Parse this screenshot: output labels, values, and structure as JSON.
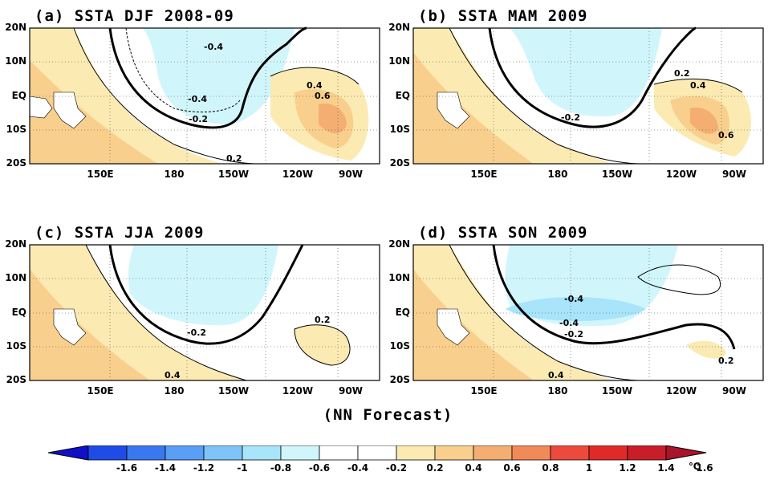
{
  "panels": [
    {
      "id": "a",
      "title": "(a) SSTA DJF 2008-09",
      "labels": [
        "-0.4",
        "-0.4",
        "-0.2",
        "0.2",
        "0.4",
        "0.6"
      ]
    },
    {
      "id": "b",
      "title": "(b) SSTA MAM 2009",
      "labels": [
        "-0.2",
        "0.2",
        "0.4",
        "0.6"
      ]
    },
    {
      "id": "c",
      "title": "(c) SSTA JJA 2009",
      "labels": [
        "-0.2",
        "0.2",
        "0.4"
      ]
    },
    {
      "id": "d",
      "title": "(d) SSTA SON 2009",
      "labels": [
        "-0.4",
        "-0.4",
        "-0.2",
        "0.2",
        "0.4"
      ]
    }
  ],
  "lat_labels": [
    "20N",
    "10N",
    "EQ",
    "10S",
    "20S"
  ],
  "lon_labels": [
    "150E",
    "180",
    "150W",
    "120W",
    "90W"
  ],
  "footer": "(NN Forecast)",
  "colorbar": {
    "ticks": [
      "-1.6",
      "-1.4",
      "-1.2",
      "-1",
      "-0.8",
      "-0.6",
      "-0.4",
      "-0.2",
      "0.2",
      "0.4",
      "0.6",
      "0.8",
      "1",
      "1.2",
      "1.4",
      "1.6"
    ],
    "unit": "℃",
    "colors": [
      "#1010c8",
      "#1f4ce6",
      "#3a78f0",
      "#5a9ef5",
      "#7ec4f8",
      "#a8e4fa",
      "#d0f6fc",
      "#ffffff",
      "#ffffff",
      "#fbeab2",
      "#f9cf8d",
      "#f5ae72",
      "#f08a58",
      "#ec4a3c",
      "#e02a2a",
      "#c81e2a",
      "#a8142a"
    ]
  }
}
